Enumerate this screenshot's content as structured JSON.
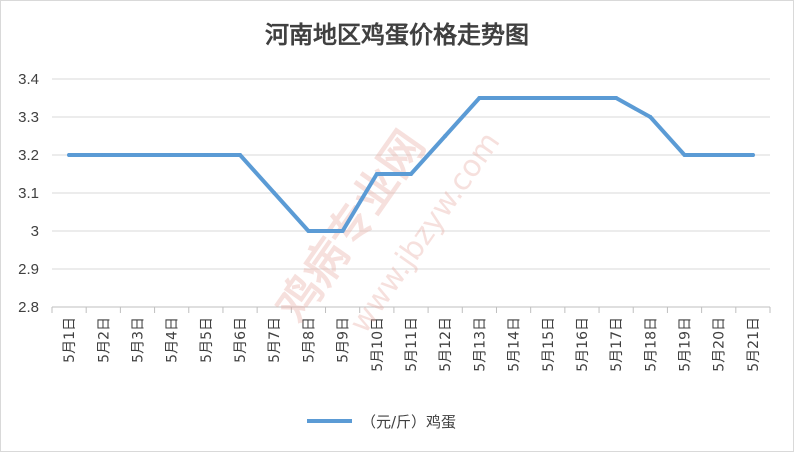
{
  "chart_data": {
    "type": "line",
    "title": "河南地区鸡蛋价格走势图",
    "categories": [
      "5月1日",
      "5月2日",
      "5月3日",
      "5月4日",
      "5月5日",
      "5月6日",
      "5月7日",
      "5月8日",
      "5月9日",
      "5月10日",
      "5月11日",
      "5月12日",
      "5月13日",
      "5月14日",
      "5月15日",
      "5月16日",
      "5月17日",
      "5月18日",
      "5月19日",
      "5月20日",
      "5月21日"
    ],
    "series": [
      {
        "name": "（元/斤）鸡蛋",
        "color": "#5b9bd5",
        "values": [
          3.2,
          3.2,
          3.2,
          3.2,
          3.2,
          3.2,
          3.1,
          3.0,
          3.0,
          3.15,
          3.15,
          3.25,
          3.35,
          3.35,
          3.35,
          3.35,
          3.35,
          3.3,
          3.2,
          3.2,
          3.2
        ]
      }
    ],
    "ylim": [
      2.8,
      3.4
    ],
    "yticks": [
      "2.8",
      "2.9",
      "3",
      "3.1",
      "3.2",
      "3.3",
      "3.4"
    ],
    "grid": true,
    "legend_position": "bottom"
  },
  "watermark": {
    "line1": "鸡病专业网",
    "line2": "www.jbzyw.com"
  }
}
